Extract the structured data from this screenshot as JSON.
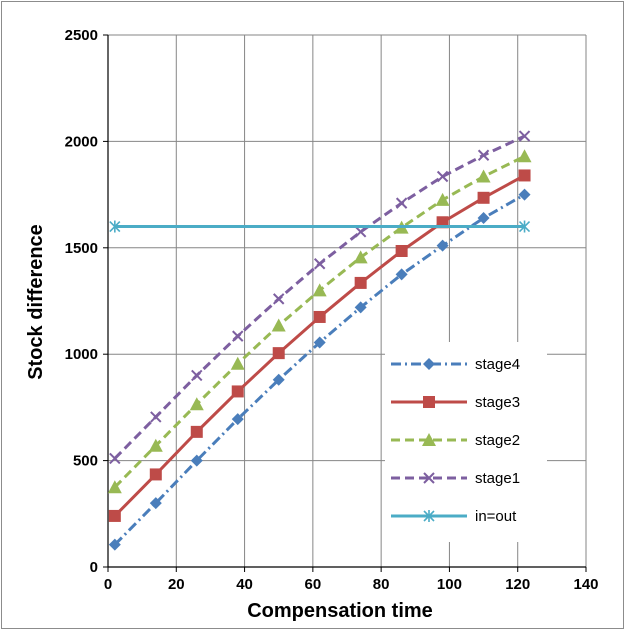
{
  "chart_data": {
    "type": "line",
    "title": "",
    "xlabel": "Compensation time",
    "ylabel": "Stock difference",
    "xlim": [
      0,
      140
    ],
    "ylim": [
      0,
      2500
    ],
    "xticks": [
      "0",
      "20",
      "40",
      "60",
      "80",
      "100",
      "120",
      "140"
    ],
    "yticks": [
      "0",
      "500",
      "1000",
      "1500",
      "2000",
      "2500"
    ],
    "grid": true,
    "legend_position": "bottom-right",
    "series": [
      {
        "name": "stage4",
        "color": "#4a7ebb",
        "marker": "diamond",
        "line_style": "dash-dot",
        "x": [
          2,
          14,
          26,
          38,
          50,
          62,
          74,
          86,
          98,
          110,
          122
        ],
        "y": [
          105,
          300,
          500,
          695,
          880,
          1055,
          1220,
          1375,
          1510,
          1640,
          1750
        ]
      },
      {
        "name": "stage3",
        "color": "#be4b48",
        "marker": "square",
        "line_style": "solid",
        "x": [
          2,
          14,
          26,
          38,
          50,
          62,
          74,
          86,
          98,
          110,
          122
        ],
        "y": [
          240,
          435,
          635,
          825,
          1005,
          1175,
          1335,
          1485,
          1620,
          1735,
          1840
        ]
      },
      {
        "name": "stage2",
        "color": "#98b954",
        "marker": "triangle",
        "line_style": "dash",
        "x": [
          2,
          14,
          26,
          38,
          50,
          62,
          74,
          86,
          98,
          110,
          122
        ],
        "y": [
          375,
          570,
          765,
          955,
          1135,
          1300,
          1455,
          1595,
          1725,
          1835,
          1930
        ]
      },
      {
        "name": "stage1",
        "color": "#7d5fa0",
        "marker": "x",
        "line_style": "dash",
        "x": [
          2,
          14,
          26,
          38,
          50,
          62,
          74,
          86,
          98,
          110,
          122
        ],
        "y": [
          510,
          705,
          900,
          1085,
          1260,
          1425,
          1575,
          1710,
          1835,
          1935,
          2025
        ]
      },
      {
        "name": "in=out",
        "color": "#4bacc6",
        "marker": "asterisk",
        "line_style": "solid",
        "x": [
          2,
          122
        ],
        "y": [
          1600,
          1600
        ]
      }
    ]
  }
}
